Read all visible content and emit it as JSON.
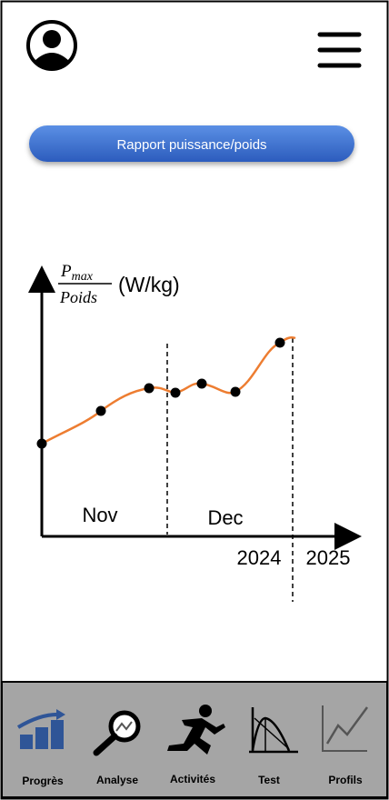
{
  "button": {
    "label": "Rapport puissance/poids"
  },
  "chart": {
    "y_label": {
      "numerator": "P",
      "numerator_sub": "max",
      "denominator": "Poids",
      "unit": "(W/kg)"
    },
    "months": [
      "Nov",
      "Dec"
    ],
    "years": [
      "2024",
      "2025"
    ]
  },
  "nav": {
    "items": [
      {
        "label": "Progrès"
      },
      {
        "label": "Analyse"
      },
      {
        "label": "Activités"
      },
      {
        "label": "Test"
      },
      {
        "label": "Profils"
      }
    ]
  }
}
